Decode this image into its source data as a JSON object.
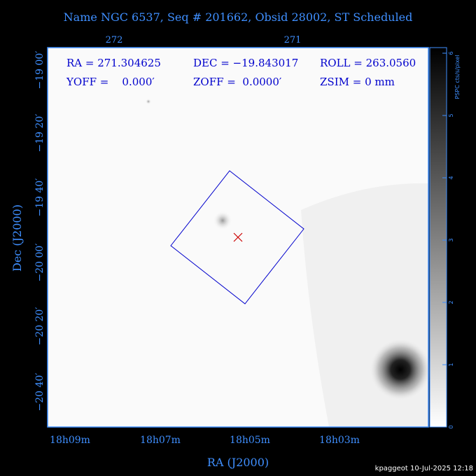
{
  "title": "Name NGC 6537, Seq # 201662, Obsid 28002, ST Scheduled",
  "header": {
    "row1": [
      "RA = 271.304625",
      "DEC = −19.843017",
      "ROLL = 263.0560"
    ],
    "row2": [
      "YOFF =    0.000′",
      "ZOFF =  0.0000′",
      "ZSIM = 0 mm"
    ]
  },
  "axes": {
    "top_ticks": [
      "272",
      "271"
    ],
    "left_ticks": [
      "−19 00′",
      "−19 20′",
      "−19 40′",
      "−20 00′",
      "−20 20′",
      "−20 40′"
    ],
    "bottom_ticks": [
      "18h09m",
      "18h07m",
      "18h05m",
      "18h03m"
    ],
    "x_label": "RA (J2000)",
    "y_label": "Dec (J2000)"
  },
  "colorbar": {
    "label": "PSPC cts/s/pixel",
    "ticks": [
      0,
      1,
      2,
      3,
      4,
      5,
      6
    ]
  },
  "footer": "kpaggeot 10-Jul-2025 12:18"
}
